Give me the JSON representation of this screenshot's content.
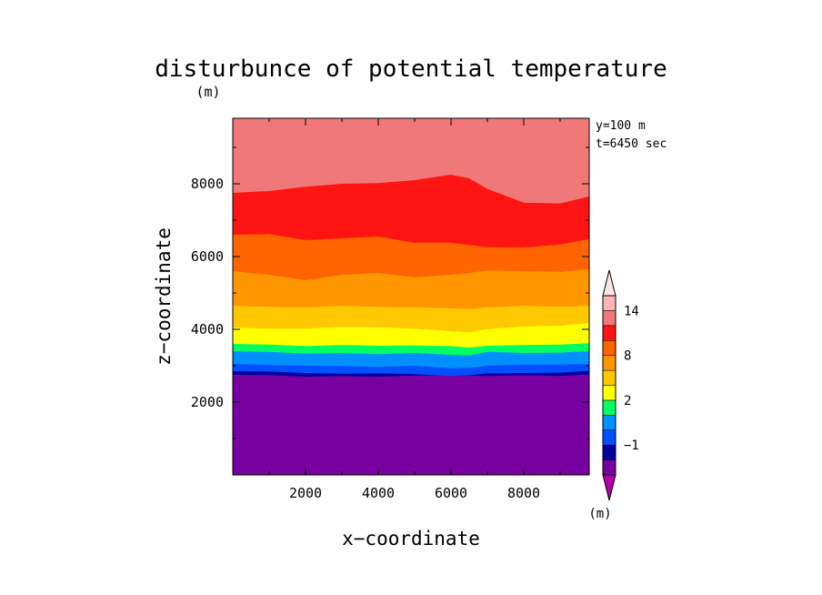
{
  "chart_data": {
    "type": "heatmap",
    "title": "disturbunce of potential temperature",
    "title_unit": "(m)",
    "xlabel": "x−coordinate",
    "ylabel": "z−coordinate",
    "colorbar_unit": "(m)",
    "annotations": [
      "y=100 m",
      "t=6450 sec"
    ],
    "xlim": [
      0,
      9800
    ],
    "ylim": [
      0,
      9800
    ],
    "xticks": [
      2000,
      4000,
      6000,
      8000
    ],
    "yticks": [
      2000,
      4000,
      6000,
      8000
    ],
    "xtick_labels": [
      "2000",
      "4000",
      "6000",
      "8000"
    ],
    "ytick_labels": [
      "2000",
      "4000",
      "6000",
      "8000"
    ],
    "colorbar": {
      "levels": [
        -3,
        -2,
        -1,
        0,
        1,
        2,
        4,
        6,
        8,
        10,
        12,
        14,
        16
      ],
      "colors": [
        "#b400a8",
        "#7800a0",
        "#0000a0",
        "#0050ff",
        "#0090ff",
        "#00ff60",
        "#ffff00",
        "#ffc800",
        "#ff9600",
        "#ff6400",
        "#ff1414",
        "#f07878",
        "#ffb4b4",
        "#ffe6e6"
      ],
      "tick_labels": [
        {
          "value": -1,
          "text": "−1"
        },
        {
          "value": 2,
          "text": "2"
        },
        {
          "value": 8,
          "text": "8"
        },
        {
          "value": 14,
          "text": "14"
        }
      ],
      "extend": "both"
    },
    "contour_x": [
      0,
      1000,
      2000,
      3000,
      4000,
      5000,
      6000,
      6500,
      7000,
      8000,
      9000,
      9800
    ],
    "contours": [
      {
        "level": -2,
        "z": [
          2750,
          2740,
          2700,
          2720,
          2700,
          2730,
          2740,
          2730,
          2720,
          2740,
          2720,
          2760
        ]
      },
      {
        "level": -1,
        "z": [
          2850,
          2840,
          2800,
          2780,
          2790,
          2770,
          2720,
          2740,
          2790,
          2800,
          2810,
          2860
        ]
      },
      {
        "level": 0,
        "z": [
          3050,
          3020,
          3000,
          2990,
          2970,
          3000,
          2930,
          2940,
          3000,
          3030,
          3030,
          3050
        ]
      },
      {
        "level": 1,
        "z": [
          3400,
          3380,
          3330,
          3350,
          3320,
          3350,
          3300,
          3280,
          3380,
          3350,
          3360,
          3400
        ]
      },
      {
        "level": 2,
        "z": [
          3600,
          3580,
          3540,
          3570,
          3550,
          3560,
          3540,
          3500,
          3550,
          3570,
          3580,
          3620
        ]
      },
      {
        "level": 4,
        "z": [
          4050,
          4020,
          4020,
          4070,
          4060,
          4020,
          3950,
          3920,
          4010,
          4080,
          4100,
          4180
        ]
      },
      {
        "level": 6,
        "z": [
          4650,
          4620,
          4600,
          4650,
          4620,
          4600,
          4580,
          4560,
          4600,
          4650,
          4620,
          4650
        ]
      },
      {
        "level": 8,
        "z": [
          5600,
          5500,
          5350,
          5500,
          5550,
          5430,
          5500,
          5550,
          5620,
          5600,
          5580,
          5650
        ]
      },
      {
        "level": 10,
        "z": [
          6600,
          6620,
          6450,
          6500,
          6550,
          6380,
          6380,
          6320,
          6260,
          6250,
          6330,
          6480
        ]
      },
      {
        "level": 12,
        "z": [
          7750,
          7800,
          7920,
          8000,
          8020,
          8100,
          8250,
          8150,
          7860,
          7480,
          7460,
          7650
        ]
      }
    ]
  }
}
